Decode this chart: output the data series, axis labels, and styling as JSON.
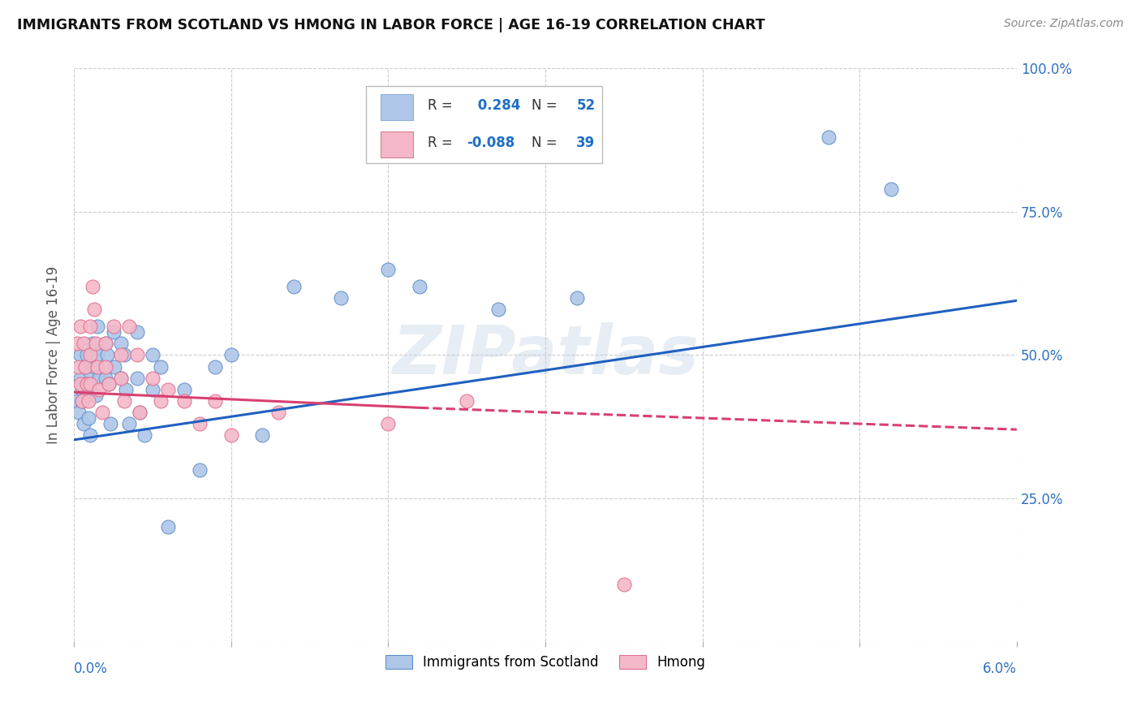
{
  "title": "IMMIGRANTS FROM SCOTLAND VS HMONG IN LABOR FORCE | AGE 16-19 CORRELATION CHART",
  "source": "Source: ZipAtlas.com",
  "ylabel": "In Labor Force | Age 16-19",
  "xlim": [
    0.0,
    0.06
  ],
  "ylim": [
    0.0,
    1.0
  ],
  "xticks": [
    0.0,
    0.01,
    0.02,
    0.03,
    0.04,
    0.05,
    0.06
  ],
  "yticks": [
    0.0,
    0.25,
    0.5,
    0.75,
    1.0
  ],
  "scotland_color": "#aec6e8",
  "scotland_edge": "#6090c8",
  "hmong_color": "#f4b8c8",
  "hmong_edge": "#e07090",
  "scotland_R": 0.284,
  "scotland_N": 52,
  "hmong_R": -0.088,
  "hmong_N": 39,
  "watermark": "ZIPatlas",
  "legend_R_color": "#1f6fc6",
  "scotland_x": [
    0.0002,
    0.0003,
    0.0004,
    0.0004,
    0.0005,
    0.0005,
    0.0006,
    0.0007,
    0.0008,
    0.0008,
    0.0009,
    0.001,
    0.001,
    0.0012,
    0.0013,
    0.0014,
    0.0015,
    0.0015,
    0.0016,
    0.002,
    0.002,
    0.0021,
    0.0022,
    0.0023,
    0.0025,
    0.0026,
    0.003,
    0.003,
    0.0032,
    0.0033,
    0.0035,
    0.004,
    0.004,
    0.0042,
    0.0045,
    0.005,
    0.005,
    0.0055,
    0.006,
    0.007,
    0.008,
    0.009,
    0.01,
    0.012,
    0.014,
    0.017,
    0.02,
    0.022,
    0.027,
    0.032,
    0.048,
    0.052
  ],
  "scotland_y": [
    0.42,
    0.4,
    0.5,
    0.46,
    0.44,
    0.42,
    0.38,
    0.48,
    0.5,
    0.43,
    0.39,
    0.47,
    0.36,
    0.52,
    0.48,
    0.43,
    0.55,
    0.5,
    0.46,
    0.52,
    0.46,
    0.5,
    0.45,
    0.38,
    0.54,
    0.48,
    0.52,
    0.46,
    0.5,
    0.44,
    0.38,
    0.54,
    0.46,
    0.4,
    0.36,
    0.5,
    0.44,
    0.48,
    0.2,
    0.44,
    0.3,
    0.48,
    0.5,
    0.36,
    0.62,
    0.6,
    0.65,
    0.62,
    0.58,
    0.6,
    0.88,
    0.79
  ],
  "hmong_x": [
    0.0002,
    0.0003,
    0.0004,
    0.0004,
    0.0005,
    0.0006,
    0.0007,
    0.0008,
    0.0009,
    0.001,
    0.001,
    0.001,
    0.0012,
    0.0013,
    0.0014,
    0.0015,
    0.0016,
    0.0018,
    0.002,
    0.002,
    0.0022,
    0.0025,
    0.003,
    0.003,
    0.0032,
    0.0035,
    0.004,
    0.0042,
    0.005,
    0.0055,
    0.006,
    0.007,
    0.008,
    0.009,
    0.01,
    0.013,
    0.02,
    0.025,
    0.035
  ],
  "hmong_y": [
    0.52,
    0.48,
    0.55,
    0.45,
    0.42,
    0.52,
    0.48,
    0.45,
    0.42,
    0.55,
    0.5,
    0.45,
    0.62,
    0.58,
    0.52,
    0.48,
    0.44,
    0.4,
    0.52,
    0.48,
    0.45,
    0.55,
    0.5,
    0.46,
    0.42,
    0.55,
    0.5,
    0.4,
    0.46,
    0.42,
    0.44,
    0.42,
    0.38,
    0.42,
    0.36,
    0.4,
    0.38,
    0.42,
    0.1
  ],
  "scotland_line": [
    0.0,
    0.352,
    0.06,
    0.595
  ],
  "hmong_solid": [
    0.0,
    0.435,
    0.022,
    0.408
  ],
  "hmong_dashed": [
    0.022,
    0.408,
    0.06,
    0.37
  ],
  "background_color": "#ffffff",
  "grid_color": "#cccccc"
}
